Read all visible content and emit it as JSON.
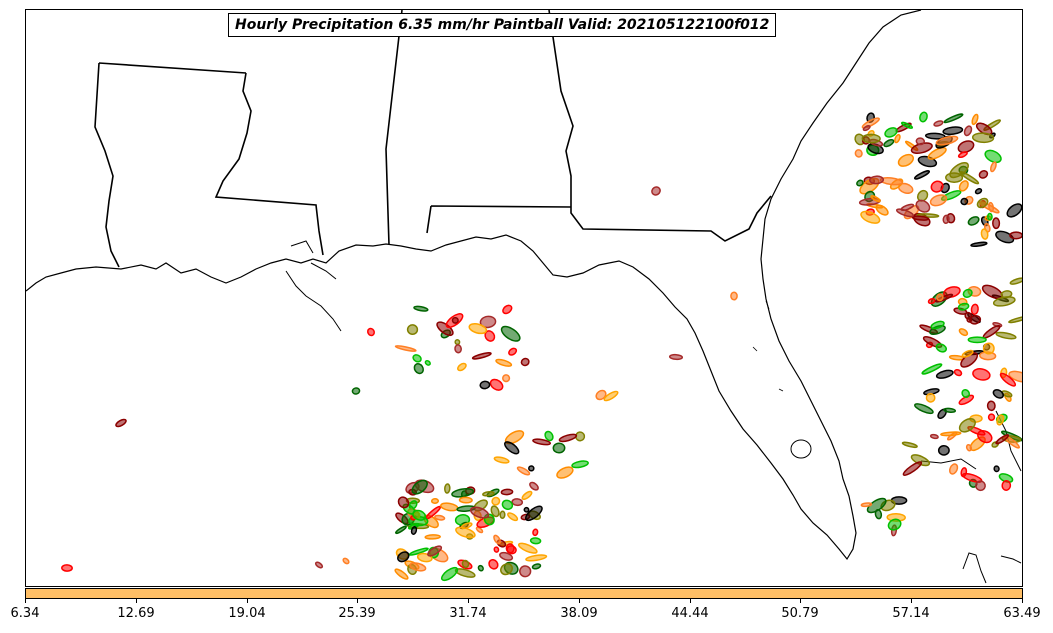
{
  "title": "Hourly Precipitation 6.35 mm/hr Paintball Valid: 202105122100f012",
  "colorbar": {
    "color": "#ffbf66",
    "tick_labels": [
      "6.34",
      "12.69",
      "19.04",
      "25.39",
      "31.74",
      "38.09",
      "44.44",
      "50.79",
      "57.14",
      "63.49"
    ]
  },
  "member_colors": [
    "#8b0000",
    "#ff0000",
    "#ff8c00",
    "#ffa500",
    "#808000",
    "#00c000",
    "#006400",
    "#000000",
    "#a52a2a",
    "#ff7f24"
  ]
}
